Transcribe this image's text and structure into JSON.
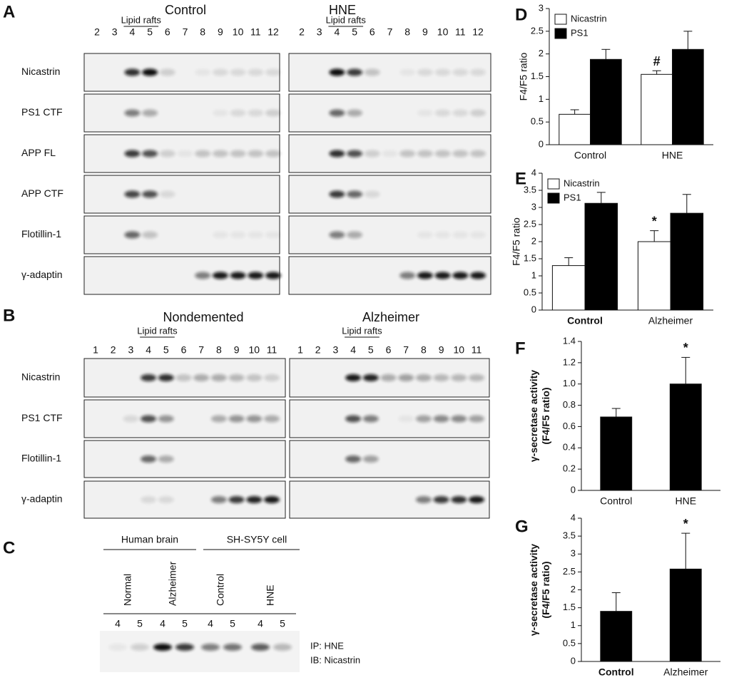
{
  "panel_A": {
    "label": "A",
    "conditions": [
      "Control",
      "HNE"
    ],
    "raft_label": "Lipid rafts",
    "lanes": [
      2,
      3,
      4,
      5,
      6,
      7,
      8,
      9,
      10,
      11,
      12
    ],
    "rows": [
      "Nicastrin",
      "PS1 CTF",
      "APP FL",
      "APP CTF",
      "Flotillin-1",
      "γ-adaptin"
    ]
  },
  "panel_B": {
    "label": "B",
    "conditions": [
      "Nondemented",
      "Alzheimer"
    ],
    "raft_label": "Lipid rafts",
    "lanes": [
      1,
      2,
      3,
      4,
      5,
      6,
      7,
      8,
      9,
      10,
      11
    ],
    "rows": [
      "Nicastrin",
      "PS1 CTF",
      "Flotillin-1",
      "γ-adaptin"
    ]
  },
  "panel_C": {
    "label": "C",
    "groups": [
      "Human brain",
      "SH-SY5Y cell"
    ],
    "samples": [
      "Normal",
      "Alzheimer",
      "Control",
      "HNE"
    ],
    "lanes": [
      4,
      5
    ],
    "notes": [
      "IP: HNE",
      "IB: Nicastrin"
    ]
  },
  "chart_data": [
    {
      "type": "bar",
      "panel": "D",
      "y_label": [
        "F4/F5 ratio"
      ],
      "categories": [
        "Control",
        "HNE"
      ],
      "series": [
        {
          "name": "Nicastrin",
          "color": "#ffffff",
          "values": [
            0.67,
            1.55
          ],
          "errors": [
            0.1,
            0.08
          ]
        },
        {
          "name": "PS1",
          "color": "#000000",
          "values": [
            1.88,
            2.1
          ],
          "errors": [
            0.22,
            0.4
          ]
        }
      ],
      "ylim": [
        0,
        3
      ],
      "yticks": [
        0,
        0.5,
        1,
        1.5,
        2,
        2.5,
        3
      ],
      "legend": "upper left",
      "annotations": [
        "#"
      ]
    },
    {
      "type": "bar",
      "panel": "E",
      "y_label": [
        "F4/F5 ratio"
      ],
      "categories": [
        "Control",
        "Alzheimer"
      ],
      "series": [
        {
          "name": "Nicastrin",
          "color": "#ffffff",
          "values": [
            1.3,
            2.0
          ],
          "errors": [
            0.23,
            0.32
          ]
        },
        {
          "name": "PS1",
          "color": "#000000",
          "values": [
            3.12,
            2.83
          ],
          "errors": [
            0.32,
            0.55
          ]
        }
      ],
      "ylim": [
        0,
        4
      ],
      "yticks": [
        0,
        0.5,
        1,
        1.5,
        2,
        2.5,
        3,
        3.5,
        4
      ],
      "legend": "upper left",
      "annotations": [
        "*"
      ]
    },
    {
      "type": "bar",
      "panel": "F",
      "y_label": [
        "γ-secretase activity",
        "(F4/F5 ratio)"
      ],
      "categories": [
        "Control",
        "HNE"
      ],
      "color": "#000000",
      "values": [
        0.69,
        1.0
      ],
      "errors": [
        0.08,
        0.25
      ],
      "ylim": [
        0,
        1.4
      ],
      "yticks": [
        0,
        0.2,
        0.4,
        0.6,
        0.8,
        {
          "value": 1,
          "label": "1.0"
        },
        1.2,
        1.4
      ],
      "annotations": [
        "*"
      ]
    },
    {
      "type": "bar",
      "panel": "G",
      "y_label": [
        "γ-secretase activity",
        "(F4/F5 ratio)"
      ],
      "categories": [
        "Control",
        "Alzheimer"
      ],
      "color": "#000000",
      "values": [
        1.4,
        2.58
      ],
      "errors": [
        0.52,
        1.0
      ],
      "ylim": [
        0,
        4
      ],
      "yticks": [
        0,
        0.5,
        1,
        1.5,
        2,
        2.5,
        3,
        3.5,
        4
      ],
      "annotations": [
        "*"
      ]
    }
  ]
}
